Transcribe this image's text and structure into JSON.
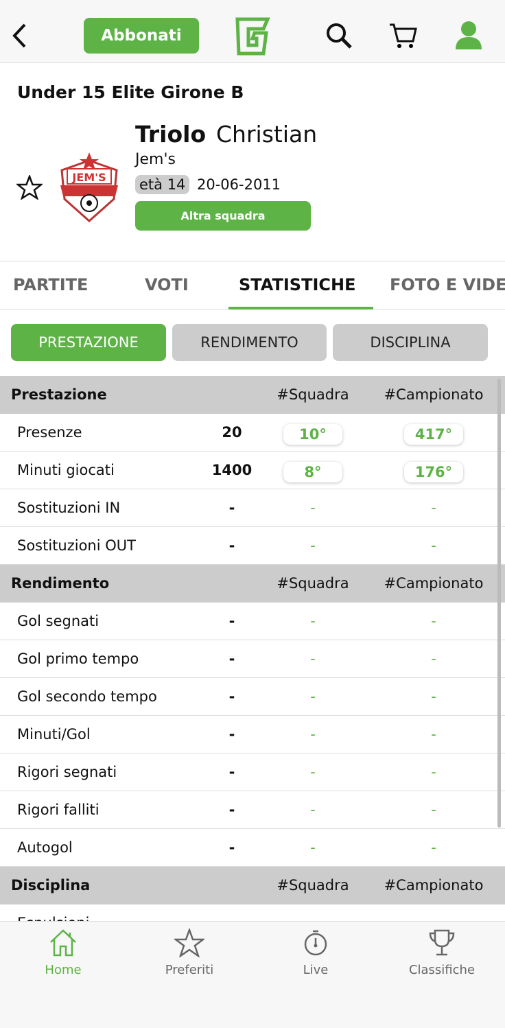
{
  "header": {
    "subscribe_label": "Abbonati",
    "logo": "G"
  },
  "player": {
    "competition": "Under 15 Elite  Girone B",
    "surname": "Triolo",
    "name": "Christian",
    "team": "Jem's",
    "age": "età 14",
    "birthdate": "20-06-2011",
    "other_team_label": "Altra squadra",
    "crest_text": "JEM'S SOCCER ACADEMY 2010"
  },
  "tabs": [
    "PARTITE",
    "VOTI",
    "STATISTICHE",
    "FOTO E VIDEO"
  ],
  "subtabs": [
    "PRESTAZIONE",
    "RENDIMENTO",
    "DISCIPLINA"
  ],
  "sections": [
    {
      "title": "Prestazione",
      "col1": "#Squadra",
      "col2": "#Campionato",
      "rows": [
        {
          "label": "Presenze",
          "value": "20",
          "team_rank": "10°",
          "league_rank": "417°"
        },
        {
          "label": "Minuti giocati",
          "value": "1400",
          "team_rank": "8°",
          "league_rank": "176°"
        },
        {
          "label": "Sostituzioni IN",
          "value": "-",
          "team_rank": "-",
          "league_rank": "-"
        },
        {
          "label": "Sostituzioni OUT",
          "value": "-",
          "team_rank": "-",
          "league_rank": "-"
        }
      ]
    },
    {
      "title": "Rendimento",
      "col1": "#Squadra",
      "col2": "#Campionato",
      "rows": [
        {
          "label": "Gol segnati",
          "value": "-",
          "team_rank": "-",
          "league_rank": "-"
        },
        {
          "label": "Gol primo tempo",
          "value": "-",
          "team_rank": "-",
          "league_rank": "-"
        },
        {
          "label": "Gol secondo tempo",
          "value": "-",
          "team_rank": "-",
          "league_rank": "-"
        },
        {
          "label": "Minuti/Gol",
          "value": "-",
          "team_rank": "-",
          "league_rank": "-"
        },
        {
          "label": "Rigori segnati",
          "value": "-",
          "team_rank": "-",
          "league_rank": "-"
        },
        {
          "label": "Rigori falliti",
          "value": "-",
          "team_rank": "-",
          "league_rank": "-"
        },
        {
          "label": "Autogol",
          "value": "-",
          "team_rank": "-",
          "league_rank": "-"
        }
      ]
    },
    {
      "title": "Disciplina",
      "col1": "#Squadra",
      "col2": "#Campionato",
      "rows": [
        {
          "label": "Espulsioni",
          "value": "-",
          "team_rank": "-",
          "league_rank": "-"
        }
      ]
    }
  ],
  "nav": [
    {
      "label": "Home",
      "icon": "home-icon"
    },
    {
      "label": "Preferiti",
      "icon": "star-icon"
    },
    {
      "label": "Live",
      "icon": "stopwatch-icon"
    },
    {
      "label": "Classifiche",
      "icon": "trophy-icon"
    }
  ],
  "colors": {
    "accent": "#5db346",
    "section_bg": "#cccccc"
  }
}
